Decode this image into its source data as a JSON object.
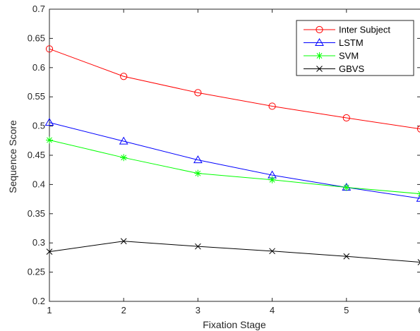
{
  "chart_data": {
    "type": "line",
    "title": "",
    "xlabel": "Fixation Stage",
    "ylabel": "Sequence Score",
    "x": [
      1,
      2,
      3,
      4,
      5,
      6
    ],
    "xlim": [
      1,
      6
    ],
    "ylim": [
      0.2,
      0.7
    ],
    "xticks": [
      "1",
      "2",
      "3",
      "4",
      "5",
      "6"
    ],
    "yticks": [
      "0.2",
      "0.25",
      "0.3",
      "0.35",
      "0.4",
      "0.45",
      "0.5",
      "0.55",
      "0.6",
      "0.65",
      "0.7"
    ],
    "grid": false,
    "legend_position": "top-right",
    "series": [
      {
        "name": "Inter Subject",
        "color": "#ff0000",
        "marker": "circle",
        "values": [
          0.632,
          0.585,
          0.557,
          0.534,
          0.514,
          0.495
        ]
      },
      {
        "name": "LSTM",
        "color": "#0000ff",
        "marker": "triangle",
        "values": [
          0.506,
          0.474,
          0.442,
          0.416,
          0.395,
          0.376
        ]
      },
      {
        "name": "SVM",
        "color": "#00ff00",
        "marker": "asterisk",
        "values": [
          0.476,
          0.446,
          0.419,
          0.408,
          0.395,
          0.384
        ]
      },
      {
        "name": "GBVS",
        "color": "#000000",
        "marker": "x",
        "values": [
          0.285,
          0.303,
          0.294,
          0.286,
          0.277,
          0.267
        ]
      }
    ]
  }
}
